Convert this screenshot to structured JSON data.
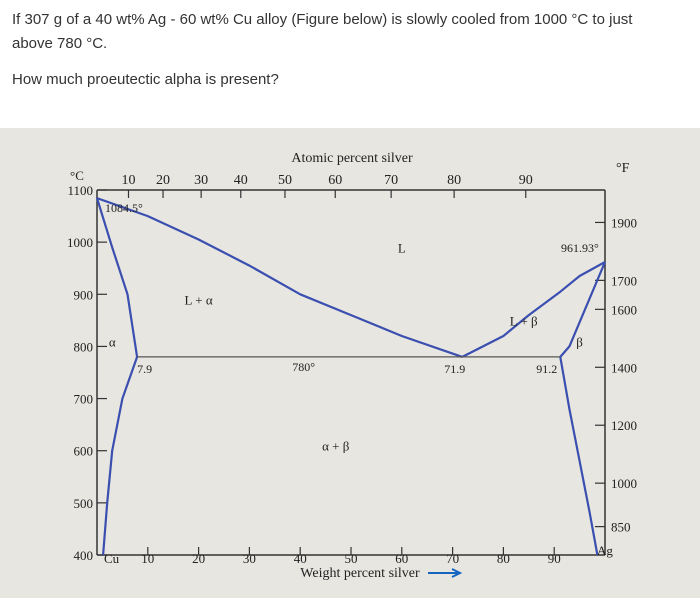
{
  "question": {
    "line1": "If 307 g of a 40 wt% Ag - 60 wt% Cu alloy (Figure below) is slowly cooled from 1000 °C to just",
    "line2": "above 780 °C.",
    "line3": "How much proeutectic alpha is present?"
  },
  "chart_data": {
    "type": "line",
    "title": "Atomic percent silver",
    "xlabel": "Weight percent silver",
    "ylabel": "°C",
    "y2label": "°F",
    "xlim": [
      0,
      100
    ],
    "ylim": [
      400,
      1100
    ],
    "bottom_ticks": [
      "10",
      "20",
      "30",
      "40",
      "50",
      "60",
      "70",
      "80",
      "90"
    ],
    "bottom_tick_values": [
      10,
      20,
      30,
      40,
      50,
      60,
      70,
      80,
      90
    ],
    "left_end_label": "Cu",
    "right_end_label": "Ag",
    "top_ticks": [
      "10",
      "20",
      "30",
      "40",
      "50",
      "60",
      "70",
      "80",
      "90"
    ],
    "top_tick_wt": [
      6.2,
      13,
      20.5,
      28.3,
      37,
      46.9,
      57.9,
      70.3,
      84.4
    ],
    "left_ticks": [
      "1100",
      "1000",
      "900",
      "800",
      "700",
      "600",
      "500",
      "400"
    ],
    "left_tick_values": [
      1100,
      1000,
      900,
      800,
      700,
      600,
      500,
      400
    ],
    "right_ticks": [
      "1900",
      "1700",
      "1600",
      "1400",
      "1200",
      "1000",
      "850"
    ],
    "right_tick_values_f": [
      1900,
      1700,
      1600,
      1400,
      1200,
      1000,
      850
    ],
    "series": [
      {
        "values": [
          [
            0,
            1084.5
          ],
          [
            10,
            1050
          ],
          [
            20,
            1005
          ],
          [
            30,
            955
          ],
          [
            40,
            900
          ],
          [
            50,
            860
          ],
          [
            60,
            820
          ],
          [
            71.9,
            780
          ]
        ]
      },
      {
        "values": [
          [
            71.9,
            780
          ],
          [
            80,
            820
          ],
          [
            85,
            860
          ],
          [
            91.2,
            905
          ],
          [
            95,
            935
          ],
          [
            100,
            961.9
          ]
        ]
      },
      {
        "values": [
          [
            0,
            1084.5
          ],
          [
            3,
            990
          ],
          [
            6,
            900
          ],
          [
            7.9,
            780
          ]
        ]
      },
      {
        "values": [
          [
            7.9,
            780
          ],
          [
            5,
            700
          ],
          [
            3,
            600
          ],
          [
            2,
            500
          ],
          [
            1.2,
            400
          ]
        ]
      },
      {
        "values": [
          [
            100,
            961.9
          ],
          [
            93,
            800
          ],
          [
            91.2,
            780
          ]
        ]
      },
      {
        "values": [
          [
            91.2,
            780
          ],
          [
            93,
            680
          ],
          [
            95,
            580
          ],
          [
            97,
            480
          ],
          [
            98.5,
            400
          ]
        ]
      },
      {
        "values": [
          [
            7.9,
            780
          ],
          [
            91.2,
            780
          ]
        ]
      }
    ],
    "point_labels": [
      {
        "text": "1084.5°",
        "x": 0,
        "y": 1084.5
      },
      {
        "text": "961.93°",
        "x": 100,
        "y": 961.93
      },
      {
        "text": "780°",
        "x": 40,
        "y": 780
      },
      {
        "text": "7.9",
        "x": 7.9,
        "y": 780
      },
      {
        "text": "71.9",
        "x": 71.9,
        "y": 780
      },
      {
        "text": "91.2",
        "x": 91.2,
        "y": 780
      }
    ],
    "region_labels": [
      {
        "text": "L",
        "x": 60,
        "y": 980
      },
      {
        "text": "L + α",
        "x": 20,
        "y": 880
      },
      {
        "text": "L + β",
        "x": 84,
        "y": 840
      },
      {
        "text": "α",
        "x": 3,
        "y": 800
      },
      {
        "text": "β",
        "x": 95,
        "y": 800
      },
      {
        "text": "α + β",
        "x": 47,
        "y": 600
      }
    ],
    "grid": false
  }
}
